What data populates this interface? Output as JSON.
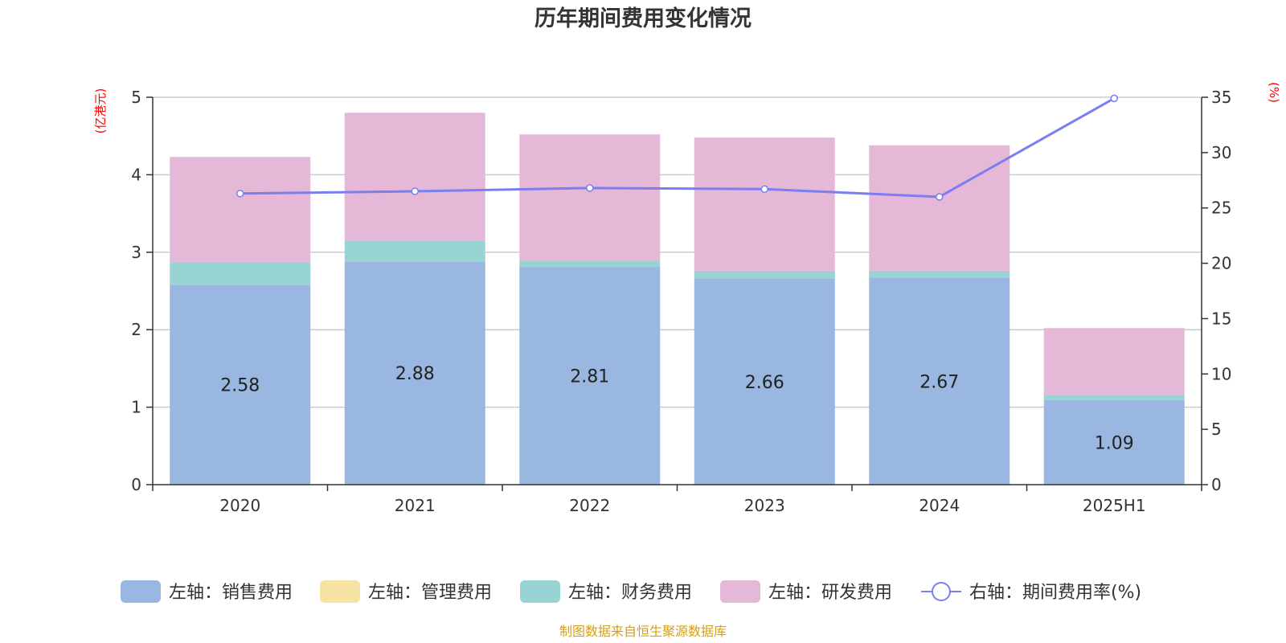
{
  "chart_data": {
    "type": "bar",
    "title": "历年期间费用变化情况",
    "categories": [
      "2020",
      "2021",
      "2022",
      "2023",
      "2024",
      "2025H1"
    ],
    "left_axis": {
      "unit_label": "(亿港元)",
      "ylim": [
        0,
        5
      ],
      "ticks": [
        "0",
        "1",
        "2",
        "3",
        "4",
        "5"
      ]
    },
    "right_axis": {
      "unit_label": "(%)",
      "ylim": [
        0,
        35
      ],
      "ticks": [
        "0",
        "5",
        "10",
        "15",
        "20",
        "25",
        "30",
        "35"
      ]
    },
    "series": [
      {
        "name": "左轴：销售费用",
        "type": "bar",
        "stack": true,
        "color": "#9ab7e1",
        "values": [
          2.58,
          2.88,
          2.81,
          2.66,
          2.67,
          1.09
        ],
        "labels": [
          "2.58",
          "2.88",
          "2.81",
          "2.66",
          "2.67",
          "1.09"
        ]
      },
      {
        "name": "左轴：管理费用",
        "type": "bar",
        "stack": true,
        "color": "#f6e3a4",
        "values": [
          0,
          0,
          0,
          0,
          0,
          0
        ]
      },
      {
        "name": "左轴：财务费用",
        "type": "bar",
        "stack": true,
        "color": "#98d4d4",
        "values": [
          0.29,
          0.27,
          0.08,
          0.1,
          0.09,
          0.07
        ]
      },
      {
        "name": "左轴：研发费用",
        "type": "bar",
        "stack": true,
        "color": "#e6b8d8",
        "values": [
          1.36,
          1.65,
          1.63,
          1.72,
          1.62,
          0.86
        ]
      },
      {
        "name": "右轴：期间费用率(%)",
        "type": "line",
        "axis": "right",
        "color": "#7a7ef0",
        "values": [
          26.3,
          26.5,
          26.8,
          26.7,
          26.0,
          34.9
        ]
      }
    ],
    "grid": true,
    "legend_position": "bottom"
  },
  "source": "制图数据来自恒生聚源数据库"
}
